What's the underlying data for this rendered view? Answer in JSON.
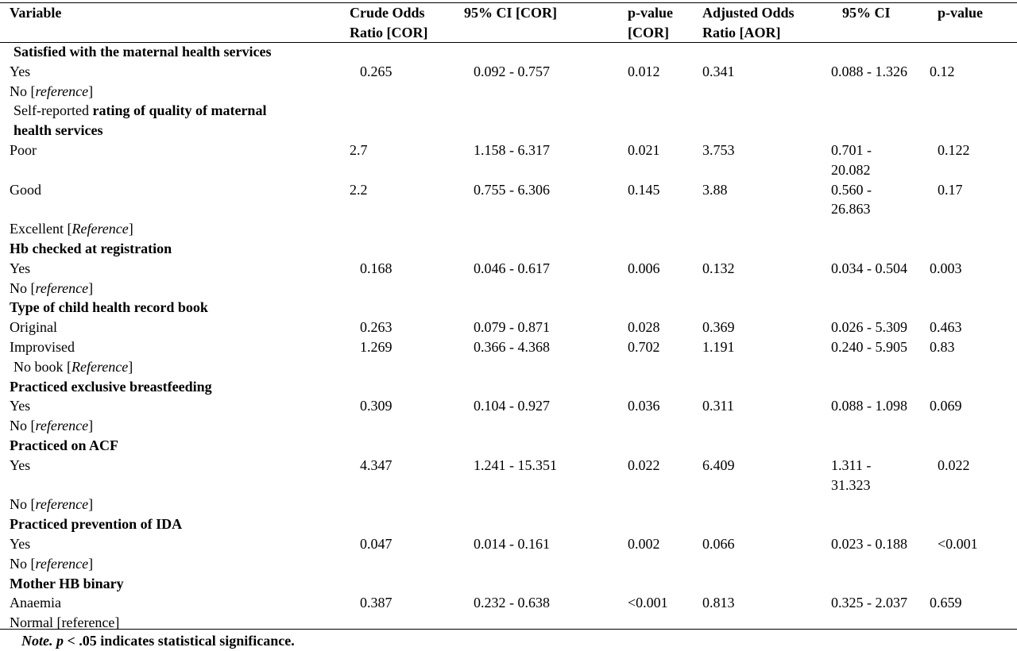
{
  "header": {
    "variable": "Variable",
    "cor_line1": "Crude Odds",
    "cor_line2": "Ratio [COR]",
    "ci_cor": "95% CI [COR]",
    "p_cor_line1": "p-value",
    "p_cor_line2": "[COR]",
    "aor_line1": "Adjusted Odds",
    "aor_line2": "Ratio [AOR]",
    "ci_aor": "95% CI",
    "p_aor": "p-value"
  },
  "sections": {
    "s1": "Satisfied with the maternal health services",
    "s2_prefix": "Self-reported ",
    "s2_bold1": "rating of quality of maternal",
    "s2_bold2": "health services",
    "s3": "Hb checked at registration",
    "s4": "Type of child health record book",
    "s5": "Practiced exclusive breastfeeding",
    "s6": "Practiced on ACF",
    "s7": "Practiced prevention of IDA",
    "s8": "Mother HB binary"
  },
  "rows": {
    "r1": {
      "label": "Yes",
      "cor": "0.265",
      "ci_cor": "0.092 - 0.757",
      "p_cor": "0.012",
      "aor": "0.341",
      "ci_aor": "0.088 - 1.326",
      "p_aor": "0.12"
    },
    "r1ref": {
      "label": "No [",
      "ref": "reference",
      "end": "]"
    },
    "r2": {
      "label": "Poor",
      "cor": "2.7",
      "ci_cor": "1.158 - 6.317",
      "p_cor": "0.021",
      "aor": "3.753",
      "ci_aor_1": "0.701 -",
      "ci_aor_2": "20.082",
      "p_aor": "0.122"
    },
    "r3": {
      "label": "Good",
      "cor": "2.2",
      "ci_cor": "0.755 - 6.306",
      "p_cor": "0.145",
      "aor": "3.88",
      "ci_aor_1": "0.560 -",
      "ci_aor_2": "26.863",
      "p_aor": "0.17"
    },
    "r3ref": {
      "label": "Excellent [",
      "ref": "Reference",
      "end": "]"
    },
    "r4": {
      "label": "Yes",
      "cor": "0.168",
      "ci_cor": "0.046 - 0.617",
      "p_cor": "0.006",
      "aor": "0.132",
      "ci_aor": "0.034 - 0.504",
      "p_aor": "0.003"
    },
    "r4ref": {
      "label": "No [",
      "ref": "reference",
      "end": "]"
    },
    "r5": {
      "label": "Original",
      "cor": "0.263",
      "ci_cor": "0.079 - 0.871",
      "p_cor": "0.028",
      "aor": "0.369",
      "ci_aor": "0.026 - 5.309",
      "p_aor": "0.463"
    },
    "r6": {
      "label": "Improvised",
      "cor": "1.269",
      "ci_cor": "0.366 - 4.368",
      "p_cor": "0.702",
      "aor": "1.191",
      "ci_aor": "0.240 - 5.905",
      "p_aor": "0.83"
    },
    "r6ref": {
      "label": "No book [",
      "ref": "Reference",
      "end": "]"
    },
    "r7": {
      "label": "Yes",
      "cor": "0.309",
      "ci_cor": "0.104 - 0.927",
      "p_cor": "0.036",
      "aor": "0.311",
      "ci_aor": "0.088 - 1.098",
      "p_aor": "0.069"
    },
    "r7ref": {
      "label": "No [",
      "ref": "reference",
      "end": "]"
    },
    "r8": {
      "label": "Yes",
      "cor": "4.347",
      "ci_cor": "1.241 - 15.351",
      "p_cor": "0.022",
      "aor": "6.409",
      "ci_aor_1": "1.311 -",
      "ci_aor_2": "31.323",
      "p_aor": "0.022"
    },
    "r8ref": {
      "label": "No [",
      "ref": "reference",
      "end": "]"
    },
    "r9": {
      "label": "Yes",
      "cor": "0.047",
      "ci_cor": "0.014 - 0.161",
      "p_cor": "0.002",
      "aor": "0.066",
      "ci_aor": "0.023 - 0.188",
      "p_aor": "<0.001"
    },
    "r9ref": {
      "label": "No [",
      "ref": "reference",
      "end": "]"
    },
    "r10": {
      "label": "Anaemia",
      "cor": "0.387",
      "ci_cor": "0.232 - 0.638",
      "p_cor": "<0.001",
      "aor": "0.813",
      "ci_aor": "0.325 - 2.037",
      "p_aor": "0.659"
    },
    "r10ref": {
      "label": "Normal [reference]"
    }
  },
  "note": {
    "note_label": "Note.",
    "p_symbol": "p",
    "rest": " < .05 indicates statistical significance."
  }
}
